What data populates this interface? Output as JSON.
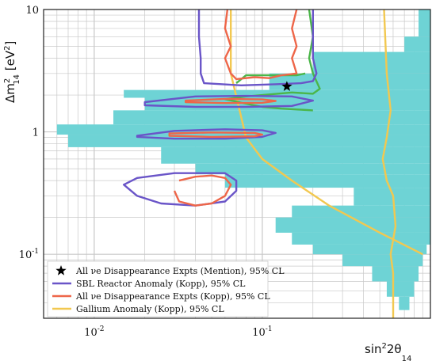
{
  "chart_data": {
    "type": "contour",
    "title": "",
    "xlabel": "sin²2θ₁₄",
    "ylabel": "Δm²₁₄ [eV²]",
    "x_scale": "log",
    "y_scale": "log",
    "xlim": [
      0.005,
      1.0
    ],
    "ylim": [
      0.03,
      10
    ],
    "grid": true,
    "x_ticks": [
      {
        "value": 0.01,
        "base": "10",
        "exp": "-2"
      },
      {
        "value": 0.1,
        "base": "10",
        "exp": "-1"
      }
    ],
    "y_ticks": [
      {
        "value": 0.1,
        "base": "10",
        "exp": "-1"
      },
      {
        "value": 1,
        "label": "1"
      },
      {
        "value": 10,
        "label": "10"
      }
    ],
    "legend_position": "bottom-left",
    "colors": {
      "sbl_reactor": "#6a55c8",
      "all_disappearance_kopp": "#ee6649",
      "gallium": "#f2c850",
      "cyan_region": "#6ed3d5",
      "green_contour": "#4bb649",
      "star": "#000000",
      "grid": "#c8c8c8"
    },
    "legend": [
      {
        "marker": "star",
        "label": "All νe Disappearance Expts (Mention), 95% CL"
      },
      {
        "marker": "line",
        "label": "SBL Reactor Anomaly (Kopp), 95% CL"
      },
      {
        "marker": "line",
        "label": "All νe Disappearance Expts (Kopp), 95% CL"
      },
      {
        "marker": "line",
        "label": "Gallium Anomaly (Kopp), 95% CL"
      }
    ],
    "best_fit_star": {
      "x": 0.14,
      "y": 2.35
    },
    "series": [
      {
        "legend_index": 1,
        "contours": [
          [
            [
              0.042,
              10
            ],
            [
              0.042,
              6
            ],
            [
              0.043,
              4
            ],
            [
              0.043,
              3
            ],
            [
              0.045,
              2.5
            ],
            [
              0.075,
              2.4
            ],
            [
              0.12,
              2.45
            ],
            [
              0.17,
              2.5
            ],
            [
              0.2,
              2.6
            ],
            [
              0.21,
              3
            ],
            [
              0.2,
              4
            ],
            [
              0.2,
              6
            ],
            [
              0.2,
              10
            ]
          ],
          [
            [
              0.02,
              1.75
            ],
            [
              0.04,
              1.95
            ],
            [
              0.08,
              1.97
            ],
            [
              0.15,
              1.95
            ],
            [
              0.2,
              1.8
            ],
            [
              0.15,
              1.63
            ],
            [
              0.08,
              1.6
            ],
            [
              0.04,
              1.6
            ],
            [
              0.02,
              1.65
            ]
          ],
          [
            [
              0.018,
              0.93
            ],
            [
              0.03,
              1.02
            ],
            [
              0.06,
              1.05
            ],
            [
              0.1,
              1.03
            ],
            [
              0.12,
              0.98
            ],
            [
              0.1,
              0.91
            ],
            [
              0.06,
              0.88
            ],
            [
              0.03,
              0.88
            ],
            [
              0.018,
              0.91
            ]
          ],
          [
            [
              0.015,
              0.37
            ],
            [
              0.018,
              0.42
            ],
            [
              0.03,
              0.46
            ],
            [
              0.06,
              0.46
            ],
            [
              0.07,
              0.4
            ],
            [
              0.07,
              0.33
            ],
            [
              0.06,
              0.27
            ],
            [
              0.04,
              0.25
            ],
            [
              0.025,
              0.26
            ],
            [
              0.018,
              0.3
            ],
            [
              0.015,
              0.37
            ]
          ]
        ]
      },
      {
        "legend_index": 2,
        "contours": [
          [
            [
              0.062,
              10
            ],
            [
              0.06,
              7
            ],
            [
              0.065,
              5
            ],
            [
              0.06,
              4
            ],
            [
              0.065,
              3
            ],
            [
              0.07,
              2.7
            ],
            [
              0.09,
              2.8
            ],
            [
              0.11,
              2.75
            ],
            [
              0.13,
              2.9
            ],
            [
              0.16,
              3
            ],
            [
              0.15,
              4
            ],
            [
              0.16,
              5
            ],
            [
              0.15,
              7
            ],
            [
              0.16,
              10
            ]
          ],
          [
            [
              0.035,
              1.8
            ],
            [
              0.06,
              1.86
            ],
            [
              0.1,
              1.84
            ],
            [
              0.12,
              1.79
            ],
            [
              0.1,
              1.73
            ],
            [
              0.06,
              1.72
            ],
            [
              0.035,
              1.75
            ]
          ],
          [
            [
              0.028,
              0.97
            ],
            [
              0.05,
              0.99
            ],
            [
              0.09,
              0.98
            ],
            [
              0.1,
              0.95
            ],
            [
              0.09,
              0.92
            ],
            [
              0.05,
              0.91
            ],
            [
              0.028,
              0.93
            ]
          ],
          [
            [
              0.032,
              0.4
            ],
            [
              0.04,
              0.43
            ],
            [
              0.05,
              0.44
            ],
            [
              0.06,
              0.42
            ],
            [
              0.065,
              0.37
            ],
            [
              0.06,
              0.3
            ],
            [
              0.05,
              0.26
            ],
            [
              0.04,
              0.25
            ],
            [
              0.032,
              0.27
            ],
            [
              0.03,
              0.33
            ]
          ]
        ]
      },
      {
        "legend_index": 3,
        "contours": [
          [
            [
              0.065,
              10
            ],
            [
              0.065,
              3
            ],
            [
              0.08,
              0.9
            ],
            [
              0.1,
              0.6
            ],
            [
              0.15,
              0.4
            ],
            [
              0.25,
              0.25
            ],
            [
              0.5,
              0.15
            ],
            [
              0.9,
              0.1
            ]
          ],
          [
            [
              0.53,
              10
            ],
            [
              0.55,
              3
            ],
            [
              0.58,
              1.5
            ],
            [
              0.55,
              0.9
            ],
            [
              0.52,
              0.6
            ],
            [
              0.55,
              0.4
            ],
            [
              0.6,
              0.3
            ],
            [
              0.62,
              0.17
            ],
            [
              0.58,
              0.1
            ],
            [
              0.6,
              0.07
            ],
            [
              0.6,
              0.03
            ]
          ]
        ]
      },
      {
        "legend_index": null,
        "contours": [
          [
            [
              0.19,
              10
            ],
            [
              0.2,
              6
            ],
            [
              0.19,
              4
            ],
            [
              0.2,
              3
            ],
            [
              0.22,
              2.25
            ],
            [
              0.2,
              2.05
            ],
            [
              0.15,
              2.1
            ],
            [
              0.1,
              2.0
            ],
            [
              0.08,
              1.95
            ],
            [
              0.06,
              1.85
            ],
            [
              0.08,
              1.7
            ],
            [
              0.1,
              1.6
            ],
            [
              0.13,
              1.55
            ],
            [
              0.2,
              1.5
            ]
          ],
          [
            [
              0.07,
              2.5
            ],
            [
              0.08,
              2.9
            ],
            [
              0.1,
              2.9
            ],
            [
              0.16,
              2.9
            ],
            [
              0.18,
              3
            ]
          ]
        ]
      }
    ],
    "filled_region_bands": [
      {
        "y_range": [
          6,
          10
        ],
        "x_range": [
          0.85,
          1.0
        ]
      },
      {
        "y_range": [
          4.5,
          6
        ],
        "x_range": [
          0.7,
          1.0
        ]
      },
      {
        "y_range": [
          3,
          4.5
        ],
        "x_range": [
          0.2,
          1.0
        ]
      },
      {
        "y_range": [
          2.2,
          3
        ],
        "x_range": [
          0.11,
          1.0
        ]
      },
      {
        "y_range": [
          1.9,
          2.2
        ],
        "x_range": [
          0.015,
          1.0
        ]
      },
      {
        "y_range": [
          1.5,
          1.9
        ],
        "x_range": [
          0.02,
          1.0
        ]
      },
      {
        "y_range": [
          1.15,
          1.5
        ],
        "x_range": [
          0.013,
          1.0
        ]
      },
      {
        "y_range": [
          0.95,
          1.15
        ],
        "x_range": [
          0.006,
          1.0
        ]
      },
      {
        "y_range": [
          0.75,
          0.95
        ],
        "x_range": [
          0.007,
          1.0
        ]
      },
      {
        "y_range": [
          0.55,
          0.75
        ],
        "x_range": [
          0.025,
          1.0
        ]
      },
      {
        "y_range": [
          0.45,
          0.55
        ],
        "x_range": [
          0.04,
          1.0
        ]
      },
      {
        "y_range": [
          0.35,
          0.45
        ],
        "x_range": [
          0.06,
          1.0
        ]
      },
      {
        "y_range": [
          0.25,
          0.35
        ],
        "x_range": [
          0.35,
          1.0
        ]
      },
      {
        "y_range": [
          0.2,
          0.25
        ],
        "x_range": [
          0.15,
          1.0
        ]
      },
      {
        "y_range": [
          0.15,
          0.2
        ],
        "x_range": [
          0.12,
          1.0
        ]
      },
      {
        "y_range": [
          0.12,
          0.15
        ],
        "x_range": [
          0.15,
          1.0
        ]
      },
      {
        "y_range": [
          0.1,
          0.12
        ],
        "x_range": [
          0.2,
          0.95
        ]
      },
      {
        "y_range": [
          0.08,
          0.1
        ],
        "x_range": [
          0.3,
          0.9
        ]
      },
      {
        "y_range": [
          0.06,
          0.08
        ],
        "x_range": [
          0.45,
          0.85
        ]
      },
      {
        "y_range": [
          0.045,
          0.06
        ],
        "x_range": [
          0.55,
          0.8
        ]
      },
      {
        "y_range": [
          0.035,
          0.045
        ],
        "x_range": [
          0.65,
          0.75
        ]
      }
    ]
  }
}
